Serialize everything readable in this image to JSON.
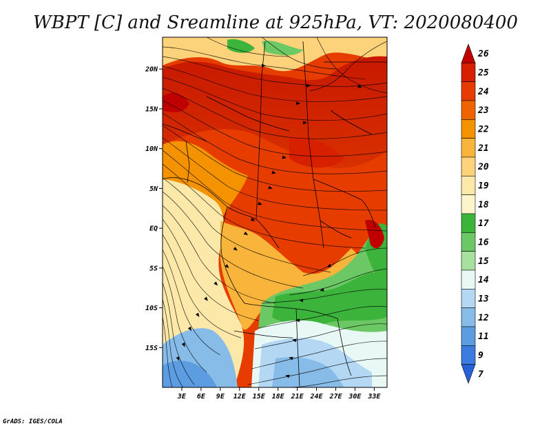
{
  "title": "WBPT [C] and Sreamline at 925hPa, VT: 2020080400",
  "credit": "GrADS: IGES/COLA",
  "map": {
    "lon_range": [
      0,
      35
    ],
    "lat_range": [
      -20,
      24
    ],
    "lat_ticks": [
      {
        "value": 20,
        "label": "20N"
      },
      {
        "value": 15,
        "label": "15N"
      },
      {
        "value": 10,
        "label": "10N"
      },
      {
        "value": 5,
        "label": "5N"
      },
      {
        "value": 0,
        "label": "EQ"
      },
      {
        "value": -5,
        "label": "5S"
      },
      {
        "value": -10,
        "label": "10S"
      },
      {
        "value": -15,
        "label": "15S"
      }
    ],
    "lon_ticks": [
      {
        "value": 3,
        "label": "3E"
      },
      {
        "value": 6,
        "label": "6E"
      },
      {
        "value": 9,
        "label": "9E"
      },
      {
        "value": 12,
        "label": "12E"
      },
      {
        "value": 15,
        "label": "15E"
      },
      {
        "value": 18,
        "label": "18E"
      },
      {
        "value": 21,
        "label": "21E"
      },
      {
        "value": 24,
        "label": "24E"
      },
      {
        "value": 27,
        "label": "27E"
      },
      {
        "value": 30,
        "label": "30E"
      },
      {
        "value": 33,
        "label": "33E"
      }
    ]
  },
  "colorbar": {
    "labels": [
      "26",
      "25",
      "24",
      "23",
      "22",
      "21",
      "20",
      "19",
      "18",
      "17",
      "16",
      "15",
      "14",
      "13",
      "12",
      "11",
      "9",
      "7"
    ],
    "colors": [
      "#c00000",
      "#d62000",
      "#e63c00",
      "#f06400",
      "#f59200",
      "#f9b43c",
      "#fcd27a",
      "#fce8a8",
      "#fcf5cc",
      "#3cb43c",
      "#6cc864",
      "#a8e0a0",
      "#e8f8f4",
      "#b4d8f4",
      "#88bce8",
      "#5c9ce0",
      "#3c7ce0",
      "#2860d8"
    ]
  }
}
